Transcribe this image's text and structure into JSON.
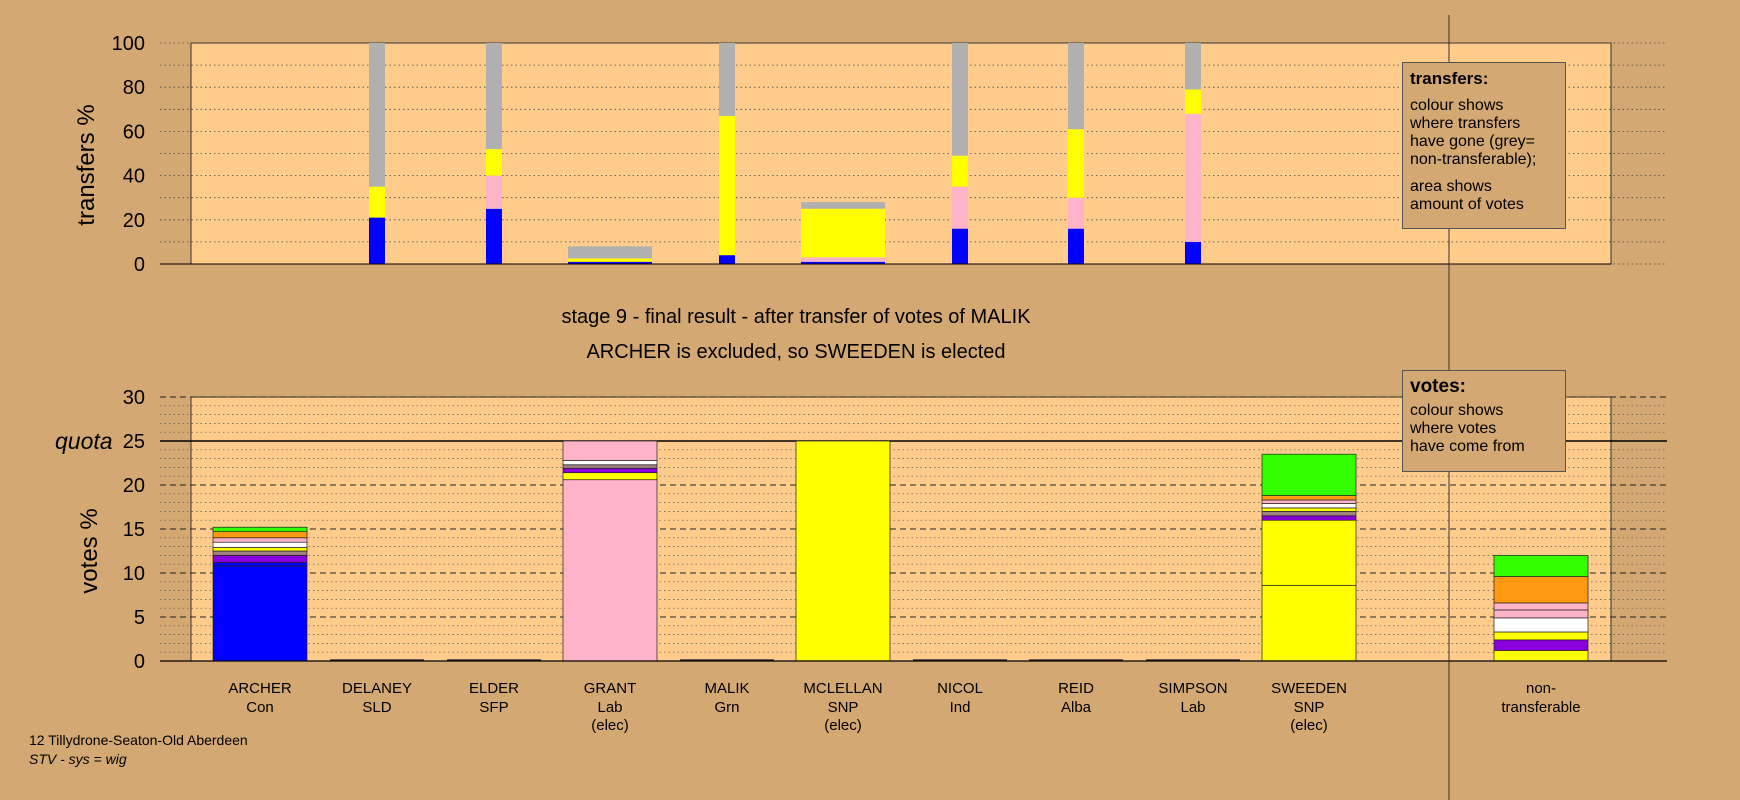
{
  "title_line1": "stage 9 - final result - after transfer of votes of MALIK",
  "title_line2": "ARCHER is excluded, so SWEEDEN is elected",
  "footer": {
    "constituency": "12 Tillydrone-Seaton-Old Aberdeen",
    "system": "STV - sys = wig"
  },
  "legend_transfers": {
    "title": "transfers:",
    "lines": [
      "colour shows",
      "where transfers",
      "have gone (grey=",
      "non-transferable);"
    ],
    "lines2": [
      "area shows",
      "amount of votes"
    ]
  },
  "legend_votes": {
    "title": "votes:",
    "lines": [
      "colour shows",
      "where votes",
      "have come from"
    ]
  },
  "colors": {
    "background": "#d4a872",
    "plot_bg": "#ffcc8c",
    "Con": "#0000ff",
    "SNP": "#ffff00",
    "Lab": "#ffb3c8",
    "Grn": "#33ff00",
    "Ind": "#ff9911",
    "Alba": "#ffffff",
    "SLD": "#8a00e0",
    "SFP": "#a08080",
    "nontransferable": "#b0b0b0"
  },
  "chart_data": [
    {
      "type": "bar",
      "name": "transfers",
      "ylabel": "transfers %",
      "ylim": [
        0,
        100
      ],
      "yticks": [
        0,
        20,
        40,
        60,
        80,
        100
      ],
      "categories": [
        "ARCHER",
        "DELANEY",
        "ELDER",
        "GRANT",
        "MALIK",
        "MCLELLAN",
        "NICOL",
        "REID",
        "SIMPSON",
        "SWEEDEN"
      ],
      "columns": [
        {
          "candidate": "DELANEY",
          "width": "narrow",
          "segments": [
            {
              "to": "Con",
              "value": 21
            },
            {
              "to": "SNP",
              "value": 14
            },
            {
              "to": "nontransferable",
              "value": 65
            }
          ]
        },
        {
          "candidate": "ELDER",
          "width": "narrow",
          "segments": [
            {
              "to": "Con",
              "value": 25
            },
            {
              "to": "Lab",
              "value": 15
            },
            {
              "to": "SNP",
              "value": 12
            },
            {
              "to": "nontransferable",
              "value": 48
            }
          ]
        },
        {
          "candidate": "GRANT",
          "width": "wide",
          "segments": [
            {
              "to": "Con",
              "value": 1
            },
            {
              "to": "SNP",
              "value": 1.5
            },
            {
              "to": "nontransferable",
              "value": 5.5
            }
          ]
        },
        {
          "candidate": "MALIK",
          "width": "narrow",
          "segments": [
            {
              "to": "Con",
              "value": 4
            },
            {
              "to": "SNP",
              "value": 63
            },
            {
              "to": "nontransferable",
              "value": 33
            }
          ]
        },
        {
          "candidate": "MCLELLAN",
          "width": "wide",
          "segments": [
            {
              "to": "Con",
              "value": 1
            },
            {
              "to": "Lab",
              "value": 2
            },
            {
              "to": "SNP",
              "value": 22
            },
            {
              "to": "nontransferable",
              "value": 3
            }
          ]
        },
        {
          "candidate": "NICOL",
          "width": "narrow",
          "segments": [
            {
              "to": "Con",
              "value": 16
            },
            {
              "to": "Lab",
              "value": 19
            },
            {
              "to": "SNP",
              "value": 14
            },
            {
              "to": "nontransferable",
              "value": 51
            }
          ]
        },
        {
          "candidate": "REID",
          "width": "narrow",
          "segments": [
            {
              "to": "Con",
              "value": 16
            },
            {
              "to": "Lab",
              "value": 14
            },
            {
              "to": "SNP",
              "value": 31
            },
            {
              "to": "nontransferable",
              "value": 39
            }
          ]
        },
        {
          "candidate": "SIMPSON",
          "width": "narrow",
          "segments": [
            {
              "to": "Con",
              "value": 10
            },
            {
              "to": "Lab",
              "value": 58
            },
            {
              "to": "SNP",
              "value": 11
            },
            {
              "to": "nontransferable",
              "value": 21
            }
          ]
        }
      ]
    },
    {
      "type": "bar",
      "name": "votes",
      "ylabel": "votes %",
      "ylim": [
        0,
        30
      ],
      "yticks": [
        0,
        5,
        10,
        15,
        20,
        25,
        30
      ],
      "quota": 25,
      "quota_label": "quota",
      "categories": [
        {
          "name": "ARCHER",
          "party": "Con",
          "note": ""
        },
        {
          "name": "DELANEY",
          "party": "SLD",
          "note": ""
        },
        {
          "name": "ELDER",
          "party": "SFP",
          "note": ""
        },
        {
          "name": "GRANT",
          "party": "Lab",
          "note": "(elec)"
        },
        {
          "name": "MALIK",
          "party": "Grn",
          "note": ""
        },
        {
          "name": "MCLELLAN",
          "party": "SNP",
          "note": "(elec)"
        },
        {
          "name": "NICOL",
          "party": "Ind",
          "note": ""
        },
        {
          "name": "REID",
          "party": "Alba",
          "note": ""
        },
        {
          "name": "SIMPSON",
          "party": "Lab",
          "note": ""
        },
        {
          "name": "SWEEDEN",
          "party": "SNP",
          "note": "(elec)"
        }
      ],
      "extra_category": {
        "name": "non-",
        "party": "transferable",
        "note": ""
      },
      "stacks": [
        {
          "candidate": "ARCHER",
          "segments": [
            {
              "from": "Con",
              "value": 10.8
            },
            {
              "from": "Con",
              "value": 0.4
            },
            {
              "from": "SLD",
              "value": 0.8
            },
            {
              "from": "SFP",
              "value": 0.5
            },
            {
              "from": "SNP",
              "value": 0.4
            },
            {
              "from": "Alba",
              "value": 0.6
            },
            {
              "from": "Lab",
              "value": 0.5
            },
            {
              "from": "Ind",
              "value": 0.7
            },
            {
              "from": "Grn",
              "value": 0.5
            }
          ]
        },
        {
          "candidate": "GRANT",
          "segments": [
            {
              "from": "Lab",
              "value": 20.6
            },
            {
              "from": "SNP",
              "value": 0.8
            },
            {
              "from": "SLD",
              "value": 0.5
            },
            {
              "from": "SFP",
              "value": 0.4
            },
            {
              "from": "Alba",
              "value": 0.5
            },
            {
              "from": "Lab",
              "value": 2.2
            }
          ]
        },
        {
          "candidate": "MCLELLAN",
          "segments": [
            {
              "from": "SNP",
              "value": 25.0
            }
          ]
        },
        {
          "candidate": "SWEEDEN",
          "segments": [
            {
              "from": "SNP",
              "value": 8.6
            },
            {
              "from": "SNP",
              "value": 7.4
            },
            {
              "from": "SLD",
              "value": 0.5
            },
            {
              "from": "SFP",
              "value": 0.5
            },
            {
              "from": "SNP",
              "value": 0.4
            },
            {
              "from": "Alba",
              "value": 0.5
            },
            {
              "from": "Lab",
              "value": 0.4
            },
            {
              "from": "Ind",
              "value": 0.5
            },
            {
              "from": "Grn",
              "value": 4.7
            }
          ]
        },
        {
          "candidate": "non-transferable",
          "segments": [
            {
              "from": "SNP",
              "value": 1.2
            },
            {
              "from": "SLD",
              "value": 1.2
            },
            {
              "from": "SNP",
              "value": 0.9
            },
            {
              "from": "Alba",
              "value": 1.6
            },
            {
              "from": "Lab",
              "value": 0.9
            },
            {
              "from": "Lab",
              "value": 0.8
            },
            {
              "from": "Ind",
              "value": 3.0
            },
            {
              "from": "Grn",
              "value": 2.4
            }
          ]
        }
      ]
    }
  ]
}
